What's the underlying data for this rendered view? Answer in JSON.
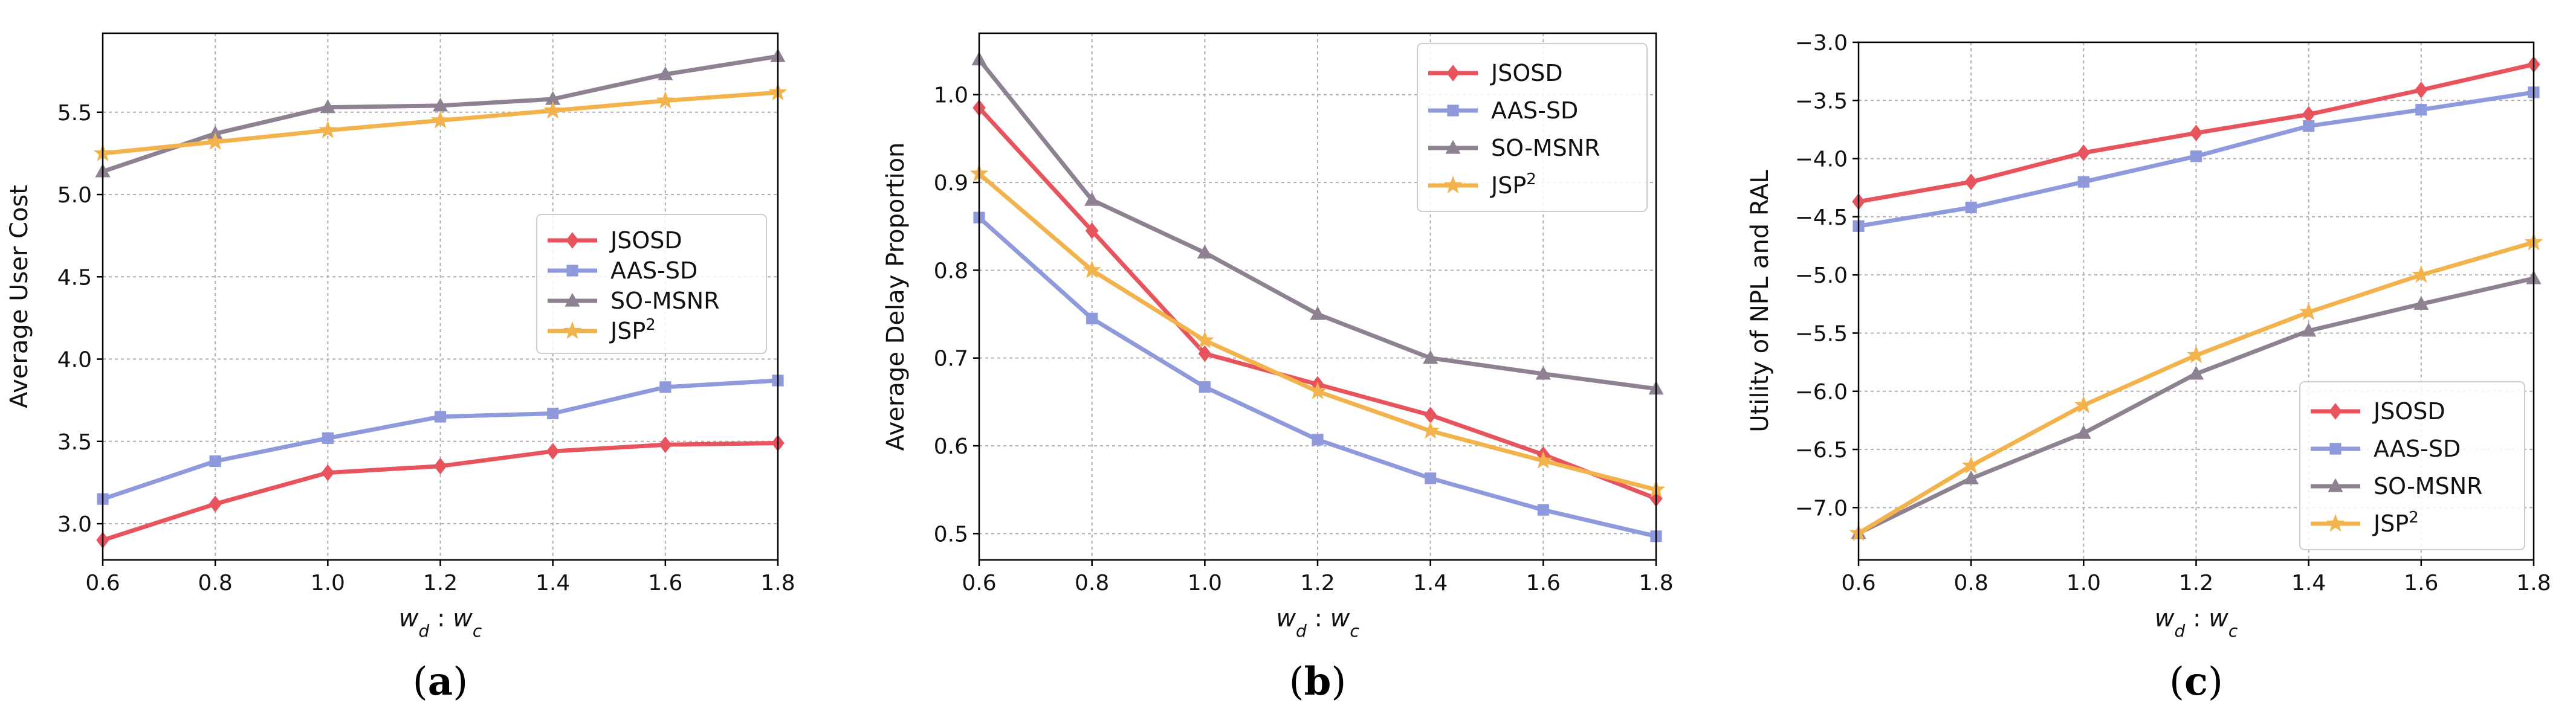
{
  "chart_data": [
    {
      "type": "line",
      "caption": "(a)",
      "xlabel": "w_d : w_c",
      "ylabel": "Average User Cost",
      "x": [
        0.6,
        0.8,
        1.0,
        1.2,
        1.4,
        1.6,
        1.8
      ],
      "xticks": [
        "0.6",
        "0.8",
        "1.0",
        "1.2",
        "1.4",
        "1.6",
        "1.8"
      ],
      "xlim": [
        0.6,
        1.8
      ],
      "ylim": [
        2.78,
        5.98
      ],
      "yticks": [
        "3.0",
        "3.5",
        "4.0",
        "4.5",
        "5.0",
        "5.5"
      ],
      "ytick_values": [
        3.0,
        3.5,
        4.0,
        4.5,
        5.0,
        5.5
      ],
      "grid": true,
      "legend_position": "center-right",
      "series": [
        {
          "name": "JSOSD",
          "values": [
            2.9,
            3.12,
            3.31,
            3.35,
            3.44,
            3.48,
            3.49
          ]
        },
        {
          "name": "AAS-SD",
          "values": [
            3.15,
            3.38,
            3.52,
            3.65,
            3.67,
            3.83,
            3.87
          ]
        },
        {
          "name": "SO-MSNR",
          "values": [
            5.14,
            5.37,
            5.53,
            5.54,
            5.58,
            5.73,
            5.84
          ]
        },
        {
          "name": "JSP",
          "name_sup": "2",
          "values": [
            5.25,
            5.32,
            5.39,
            5.45,
            5.51,
            5.57,
            5.62
          ]
        }
      ]
    },
    {
      "type": "line",
      "caption": "(b)",
      "xlabel": "w_d : w_c",
      "ylabel": "Average Delay Proportion",
      "x": [
        0.6,
        0.8,
        1.0,
        1.2,
        1.4,
        1.6,
        1.8
      ],
      "xticks": [
        "0.6",
        "0.8",
        "1.0",
        "1.2",
        "1.4",
        "1.6",
        "1.8"
      ],
      "xlim": [
        0.6,
        1.8
      ],
      "ylim": [
        0.47,
        1.07
      ],
      "yticks": [
        "0.5",
        "0.6",
        "0.7",
        "0.8",
        "0.9",
        "1.0"
      ],
      "ytick_values": [
        0.5,
        0.6,
        0.7,
        0.8,
        0.9,
        1.0
      ],
      "grid": true,
      "legend_position": "top-right",
      "series": [
        {
          "name": "JSOSD",
          "values": [
            0.985,
            0.845,
            0.705,
            0.67,
            0.635,
            0.59,
            0.54
          ]
        },
        {
          "name": "AAS-SD",
          "values": [
            0.86,
            0.745,
            0.667,
            0.607,
            0.563,
            0.527,
            0.497
          ]
        },
        {
          "name": "SO-MSNR",
          "values": [
            1.04,
            0.88,
            0.82,
            0.75,
            0.7,
            0.682,
            0.665
          ]
        },
        {
          "name": "JSP",
          "name_sup": "2",
          "values": [
            0.91,
            0.8,
            0.72,
            0.662,
            0.617,
            0.583,
            0.55
          ]
        }
      ]
    },
    {
      "type": "line",
      "caption": "(c)",
      "xlabel": "w_d : w_c",
      "ylabel": "Utility of NPL and RAL",
      "x": [
        0.6,
        0.8,
        1.0,
        1.2,
        1.4,
        1.6,
        1.8
      ],
      "xticks": [
        "0.6",
        "0.8",
        "1.0",
        "1.2",
        "1.4",
        "1.6",
        "1.8"
      ],
      "xlim": [
        0.6,
        1.8
      ],
      "ylim": [
        -7.45,
        -3.0
      ],
      "yticks": [
        "−3.0",
        "−3.5",
        "−4.0",
        "−4.5",
        "−5.0",
        "−5.5",
        "−6.0",
        "−6.5",
        "−7.0"
      ],
      "ytick_values": [
        -3.0,
        -3.5,
        -4.0,
        -4.5,
        -5.0,
        -5.5,
        -6.0,
        -6.5,
        -7.0
      ],
      "grid": true,
      "legend_position": "bottom-right",
      "series": [
        {
          "name": "JSOSD",
          "values": [
            -4.37,
            -4.2,
            -3.95,
            -3.78,
            -3.62,
            -3.41,
            -3.19
          ]
        },
        {
          "name": "AAS-SD",
          "values": [
            -4.58,
            -4.42,
            -4.2,
            -3.98,
            -3.72,
            -3.58,
            -3.43
          ]
        },
        {
          "name": "SO-MSNR",
          "values": [
            -7.22,
            -6.75,
            -6.36,
            -5.85,
            -5.48,
            -5.25,
            -5.03
          ]
        },
        {
          "name": "JSP",
          "name_sup": "2",
          "values": [
            -7.22,
            -6.64,
            -6.12,
            -5.69,
            -5.32,
            -5.0,
            -4.72
          ]
        }
      ]
    }
  ],
  "style": {
    "colors": [
      "#E8545E",
      "#8E9ADB",
      "#8D8192",
      "#F2B24C"
    ],
    "markers": [
      "diamond",
      "square",
      "triangle",
      "star"
    ],
    "grid_color": "#b0b0b0"
  }
}
